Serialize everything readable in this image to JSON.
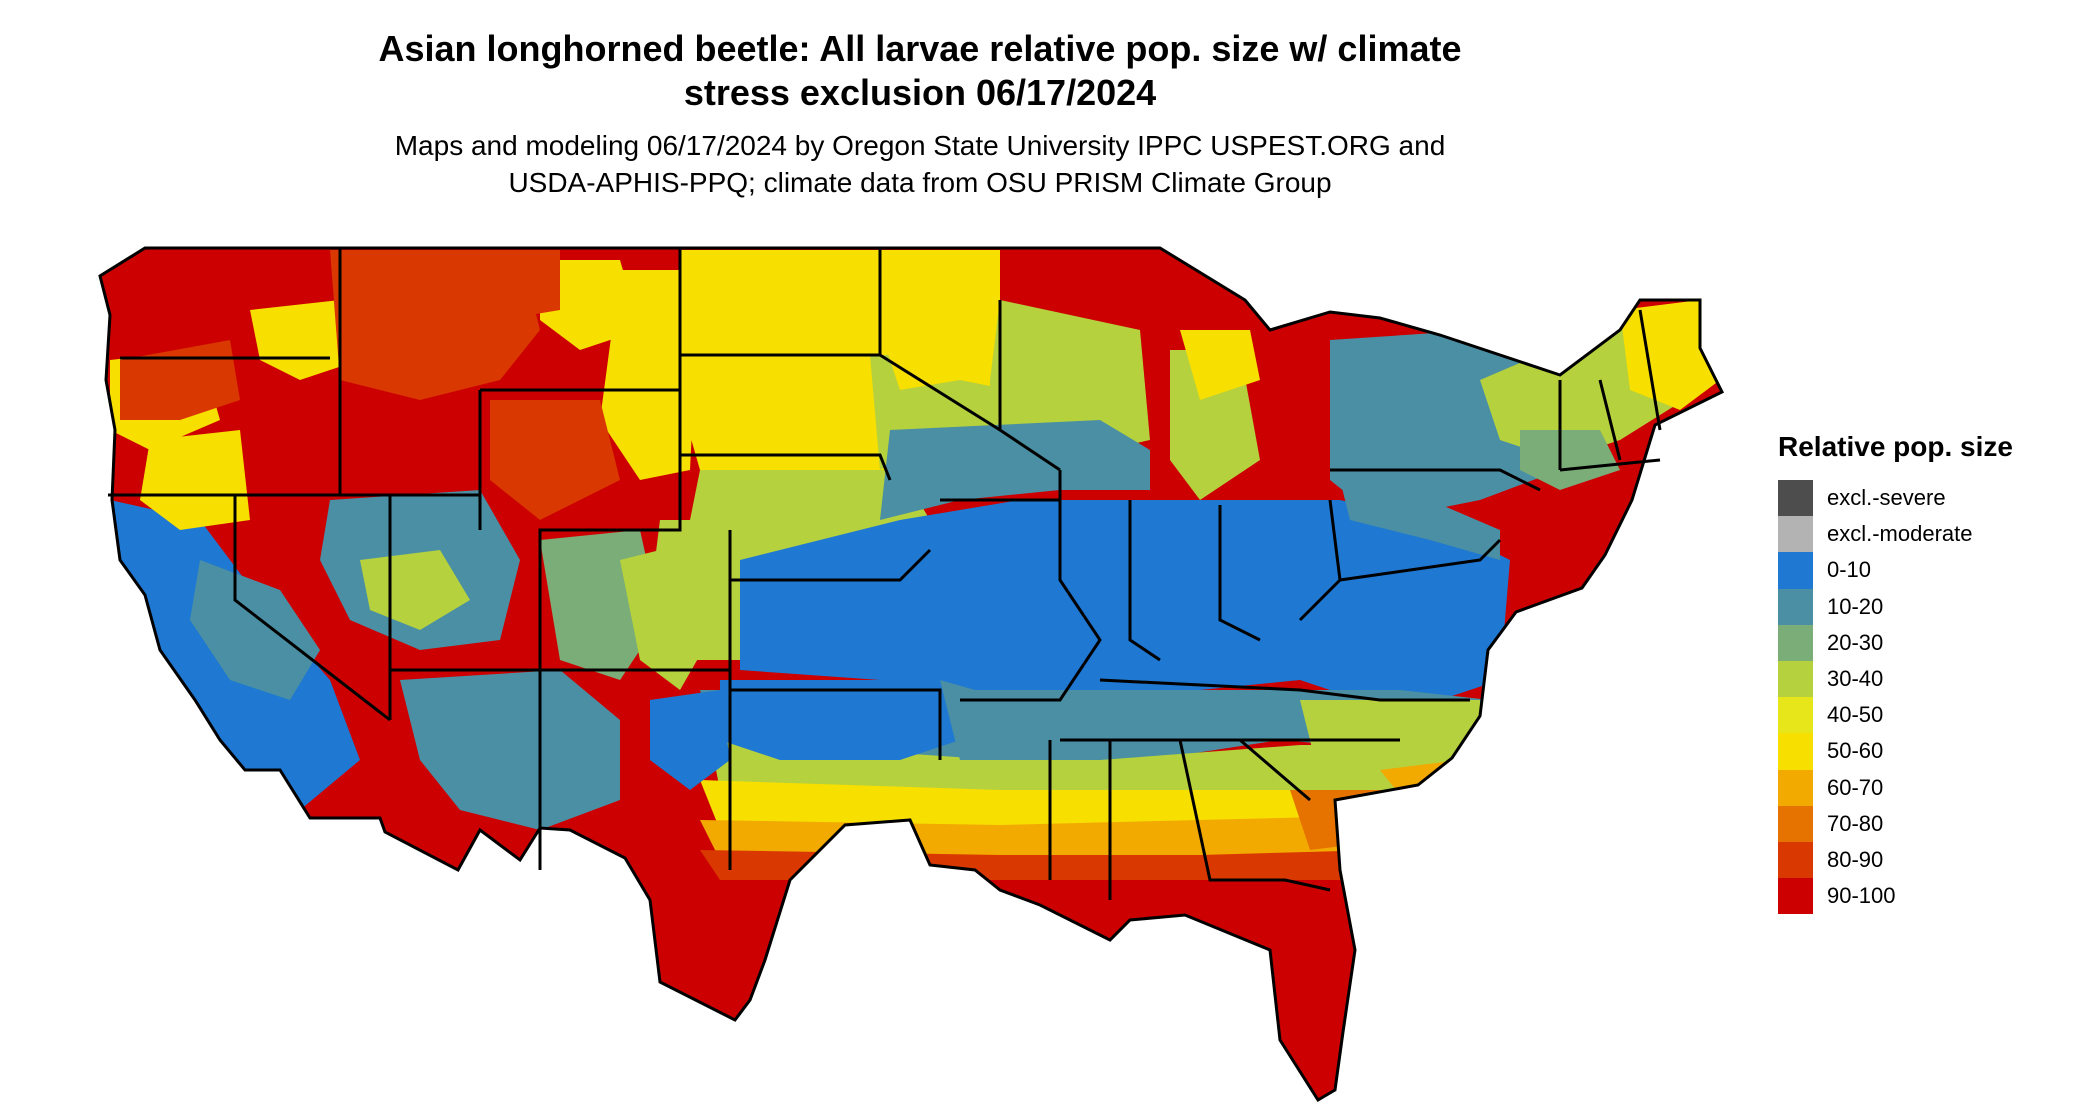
{
  "header": {
    "title_line1": "Asian longhorned beetle: All larvae relative pop. size w/ climate",
    "title_line2": "stress exclusion 06/17/2024",
    "subtitle_line1": "Maps and modeling 06/17/2024 by Oregon State University IPPC USPEST.ORG and",
    "subtitle_line2": "USDA-APHIS-PPQ; climate data from OSU PRISM Climate Group"
  },
  "legend": {
    "title": "Relative pop. size",
    "items": [
      {
        "label": "excl.-severe",
        "color": "#4d4d4d"
      },
      {
        "label": "excl.-moderate",
        "color": "#b3b3b3"
      },
      {
        "label": "0-10",
        "color": "#1f78d1"
      },
      {
        "label": "10-20",
        "color": "#4a8fa3"
      },
      {
        "label": "20-30",
        "color": "#7aad78"
      },
      {
        "label": "30-40",
        "color": "#b5d13d"
      },
      {
        "label": "40-50",
        "color": "#e6e61a"
      },
      {
        "label": "50-60",
        "color": "#f7df00"
      },
      {
        "label": "60-70",
        "color": "#f2a900"
      },
      {
        "label": "70-80",
        "color": "#e67300"
      },
      {
        "label": "80-90",
        "color": "#d93800"
      },
      {
        "label": "90-100",
        "color": "#cc0000"
      }
    ]
  }
}
